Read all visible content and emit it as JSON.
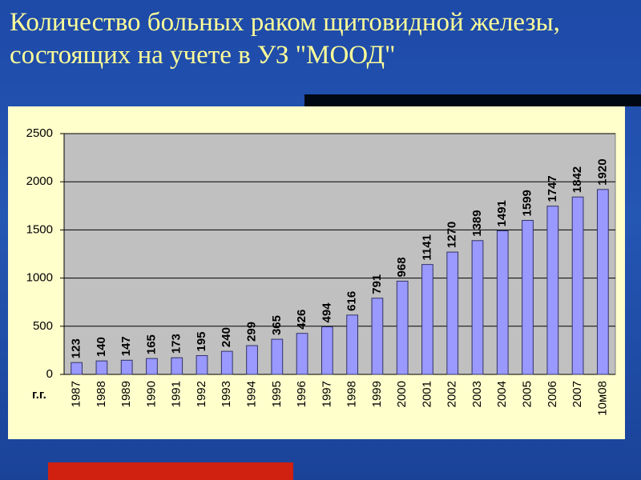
{
  "chart_data": {
    "type": "bar",
    "title": "Количество больных раком щитовидной железы, состоящих на учете в УЗ \"МООД\"",
    "x_label": "г.г.",
    "categories": [
      "1987",
      "1988",
      "1989",
      "1990",
      "1991",
      "1992",
      "1993",
      "1994",
      "1995",
      "1996",
      "1997",
      "1998",
      "1999",
      "2000",
      "2001",
      "2002",
      "2003",
      "2004",
      "2005",
      "2006",
      "2007",
      "10м08"
    ],
    "values": [
      123,
      140,
      147,
      165,
      173,
      195,
      240,
      299,
      365,
      426,
      494,
      616,
      791,
      968,
      1141,
      1270,
      1389,
      1491,
      1599,
      1747,
      1842,
      1920
    ],
    "color": "#9999ff",
    "ylim": [
      0,
      2500
    ],
    "yticks": [
      0,
      500,
      1000,
      1500,
      2000,
      2500
    ],
    "grid": true
  }
}
